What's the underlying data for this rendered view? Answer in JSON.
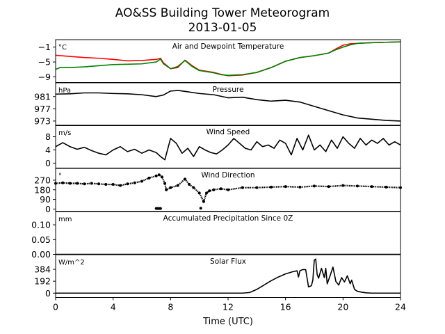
{
  "figure": {
    "title_line1": "AO&SS Building Tower Meteorogram",
    "title_line2": "2013-01-05",
    "xlabel": "Time (UTC)"
  },
  "chart_data": [
    {
      "id": "temp",
      "type": "line",
      "title": "Air and Dewpoint Temperature",
      "unit": "°C",
      "ylim": [
        -10.5,
        1.0
      ],
      "yticks": [
        -1,
        -5,
        -9
      ],
      "ytick_labels": [
        "−1",
        "−5",
        "−9"
      ],
      "xlim": [
        0,
        24
      ],
      "series": [
        {
          "color": "#ff0000",
          "x": [
            0,
            1,
            2,
            3,
            4,
            5,
            6,
            7,
            7.3,
            7.5,
            8,
            8.5,
            9,
            9.5,
            10,
            10.5,
            11,
            11.5,
            12,
            13,
            14,
            15,
            16,
            17,
            18,
            19,
            19.5,
            20,
            20.5,
            21,
            22,
            23,
            24
          ],
          "y": [
            -3.2,
            -3.5,
            -3.8,
            -4.0,
            -4.3,
            -4.7,
            -4.6,
            -4.3,
            -4.0,
            -5.2,
            -6.8,
            -6.5,
            -4.5,
            -6.0,
            -7.2,
            -7.5,
            -7.8,
            -8.3,
            -8.7,
            -8.5,
            -7.8,
            -6.5,
            -4.8,
            -3.8,
            -3.3,
            -2.6,
            -1.5,
            -0.5,
            -0.1,
            0.0,
            0.2,
            0.3,
            0.4
          ]
        },
        {
          "color": "#008000",
          "x": [
            0,
            0.3,
            1,
            2,
            3,
            4,
            5,
            6,
            7,
            7.3,
            7.5,
            8,
            8.5,
            9,
            9.5,
            10,
            10.5,
            11,
            11.5,
            12,
            13,
            14,
            15,
            16,
            17,
            18,
            19,
            19.5,
            20,
            20.5,
            21,
            22,
            23,
            24
          ],
          "y": [
            -7.0,
            -6.5,
            -6.5,
            -6.3,
            -6.0,
            -5.7,
            -5.6,
            -5.5,
            -5.0,
            -4.2,
            -5.5,
            -6.8,
            -6.2,
            -4.6,
            -6.2,
            -7.3,
            -7.6,
            -7.9,
            -8.4,
            -8.6,
            -8.4,
            -7.8,
            -6.5,
            -4.8,
            -3.8,
            -3.3,
            -2.6,
            -1.7,
            -1.0,
            -0.4,
            0.0,
            0.2,
            0.3,
            0.4
          ]
        }
      ]
    },
    {
      "id": "pressure",
      "type": "line",
      "title": "Pressure",
      "unit": "hPa",
      "ylim": [
        971.5,
        985.5
      ],
      "yticks": [
        981,
        977,
        973
      ],
      "ytick_labels": [
        "981",
        "977",
        "973"
      ],
      "xlim": [
        0,
        24
      ],
      "series": [
        {
          "color": "#000000",
          "x": [
            0,
            1,
            2,
            3,
            4,
            5,
            6,
            7,
            7.5,
            8,
            8.5,
            9,
            10,
            11,
            12,
            13,
            14,
            15,
            16,
            17,
            18,
            19,
            20,
            21,
            22,
            23,
            24
          ],
          "y": [
            981.8,
            981.9,
            982.2,
            982.2,
            982.0,
            981.9,
            981.6,
            981.0,
            981.5,
            982.8,
            983.0,
            982.7,
            982.0,
            981.6,
            980.6,
            980.8,
            980.0,
            979.5,
            979.8,
            979.2,
            977.8,
            976.4,
            975.0,
            974.0,
            973.6,
            973.2,
            973.0
          ]
        }
      ]
    },
    {
      "id": "wind_speed",
      "type": "line",
      "title": "Wind Speed",
      "unit": "m/s",
      "ylim": [
        -1.5,
        11.5
      ],
      "yticks": [
        8,
        4,
        0
      ],
      "ytick_labels": [
        "8",
        "4",
        "0"
      ],
      "xlim": [
        0,
        24
      ],
      "series": [
        {
          "color": "#000000",
          "x": [
            0,
            0.5,
            1,
            1.5,
            2,
            2.5,
            3,
            3.5,
            4,
            4.5,
            5,
            5.5,
            6,
            6.5,
            7,
            7.3,
            7.6,
            8,
            8.4,
            8.8,
            9.2,
            9.6,
            10,
            10.4,
            10.8,
            11.2,
            11.6,
            12,
            12.4,
            12.8,
            13.2,
            13.6,
            14,
            14.4,
            14.8,
            15.2,
            15.6,
            16,
            16.4,
            16.8,
            17.2,
            17.6,
            18,
            18.4,
            18.8,
            19.2,
            19.6,
            20,
            20.4,
            20.8,
            21.2,
            21.6,
            22,
            22.4,
            22.8,
            23.2,
            23.6,
            24
          ],
          "y": [
            5.0,
            6.2,
            5.0,
            4.2,
            4.8,
            3.8,
            3.0,
            2.5,
            4.0,
            5.0,
            3.5,
            4.2,
            3.0,
            4.0,
            3.2,
            2.0,
            1.0,
            7.5,
            6.0,
            3.0,
            4.5,
            2.0,
            5.0,
            4.0,
            3.2,
            2.8,
            4.0,
            5.5,
            7.5,
            6.0,
            4.5,
            4.0,
            6.5,
            5.0,
            5.5,
            4.5,
            7.0,
            6.0,
            2.5,
            7.5,
            4.0,
            8.5,
            4.0,
            5.5,
            3.5,
            7.0,
            4.5,
            8.0,
            6.0,
            4.5,
            7.5,
            5.5,
            7.0,
            6.0,
            7.5,
            5.5,
            6.5,
            5.5
          ]
        }
      ]
    },
    {
      "id": "wind_direction",
      "type": "scatter",
      "title": "Wind Direction",
      "unit": "°",
      "ylim": [
        -20,
        380
      ],
      "yticks": [
        270,
        180,
        90,
        0
      ],
      "ytick_labels": [
        "270",
        "180",
        "90",
        "0"
      ],
      "xlim": [
        0,
        24
      ],
      "series": [
        {
          "color": "#000000",
          "x": [
            0,
            0.5,
            1,
            1.5,
            2,
            2.5,
            3,
            3.5,
            4,
            4.5,
            5,
            5.5,
            6,
            6.5,
            7,
            7.2,
            7.4,
            7.6,
            7.7,
            8,
            8.5,
            9,
            9.3,
            9.6,
            10,
            10.3,
            10.5,
            10.7,
            11,
            11.5,
            12,
            13,
            14,
            15,
            16,
            17,
            18,
            19,
            20,
            21,
            22,
            23,
            24
          ],
          "y": [
            240,
            245,
            240,
            240,
            235,
            240,
            235,
            230,
            230,
            220,
            235,
            245,
            260,
            290,
            310,
            320,
            300,
            240,
            180,
            200,
            220,
            280,
            230,
            200,
            150,
            70,
            150,
            170,
            180,
            190,
            180,
            200,
            200,
            205,
            210,
            205,
            215,
            210,
            220,
            215,
            210,
            205,
            200
          ]
        },
        {
          "color": "#000000",
          "x": [
            7.0,
            7.1,
            7.2,
            7.3,
            10.1
          ],
          "y": [
            5,
            5,
            5,
            5,
            8
          ]
        }
      ]
    },
    {
      "id": "precip",
      "type": "line",
      "title": "Accumulated Precipitation Since 0Z",
      "unit": "mm",
      "ylim": [
        0.0,
        0.145
      ],
      "yticks": [
        0.1,
        0.05,
        0.0
      ],
      "ytick_labels": [
        "0.10",
        "0.05",
        "0.00"
      ],
      "xlim": [
        0,
        24
      ],
      "series": [
        {
          "color": "#000000",
          "x": [
            0,
            24
          ],
          "y": [
            0.0,
            0.0
          ]
        }
      ]
    },
    {
      "id": "solar",
      "type": "line",
      "title": "Solar Flux",
      "unit": "W/m^2",
      "ylim": [
        -70,
        620
      ],
      "yticks": [
        384,
        192,
        0
      ],
      "ytick_labels": [
        "384",
        "192",
        "0"
      ],
      "xlim": [
        0,
        24
      ],
      "xticks": [
        0,
        4,
        8,
        12,
        16,
        20,
        24
      ],
      "xtick_labels": [
        "0",
        "4",
        "8",
        "12",
        "16",
        "20",
        "24"
      ],
      "series": [
        {
          "color": "#000000",
          "x": [
            0,
            13,
            13.5,
            14,
            14.5,
            15,
            15.5,
            16,
            16.5,
            16.8,
            16.9,
            17,
            17.2,
            17.4,
            17.6,
            17.8,
            17.9,
            18,
            18.1,
            18.2,
            18.3,
            18.5,
            18.7,
            18.8,
            18.9,
            19.1,
            19.3,
            19.5,
            19.7,
            19.9,
            20.1,
            20.3,
            20.5,
            20.6,
            20.8,
            21,
            21.3,
            21.6,
            22,
            24
          ],
          "y": [
            0,
            0,
            10,
            60,
            130,
            200,
            260,
            310,
            345,
            360,
            260,
            360,
            380,
            380,
            100,
            120,
            210,
            530,
            550,
            300,
            240,
            400,
            250,
            400,
            150,
            280,
            420,
            190,
            130,
            250,
            180,
            280,
            150,
            210,
            60,
            30,
            15,
            5,
            0,
            0
          ]
        }
      ]
    }
  ]
}
